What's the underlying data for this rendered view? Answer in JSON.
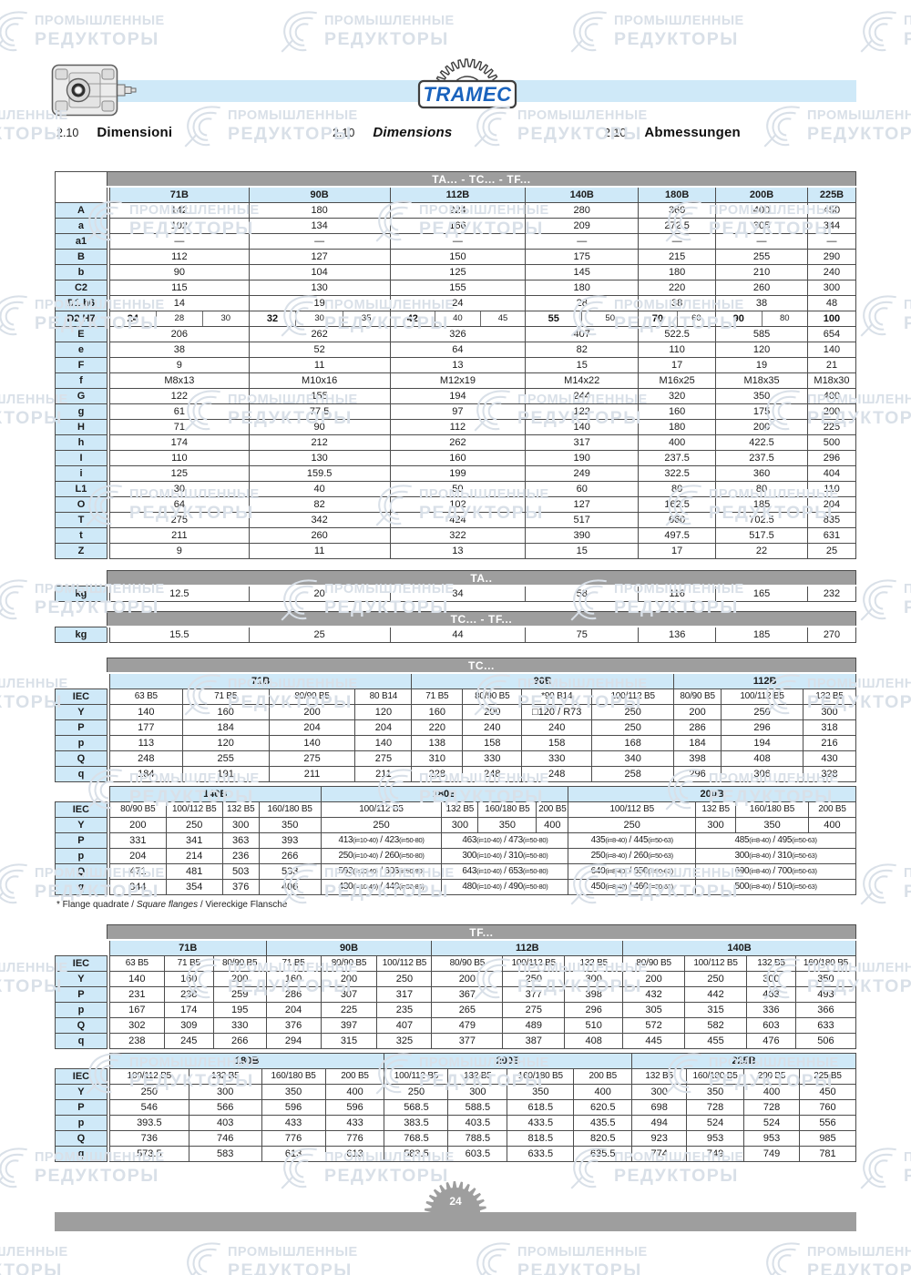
{
  "header": {
    "logo": "TRAMEC",
    "sections": [
      {
        "num": "2.10",
        "title": "Dimensioni"
      },
      {
        "num": "2.10",
        "title": "Dimensions"
      },
      {
        "num": "2.10",
        "title": "Abmessungen"
      }
    ]
  },
  "watermark": {
    "line1": "ПРОМЫШЛЕННЫЕ",
    "line2": "РЕДУКТОРЫ"
  },
  "colors": {
    "band_gray": "#9e9e9e",
    "cell_blue": "#cfe9f8",
    "header_band_blue": "#cfe9f8",
    "logo_blue": "#1a63bd",
    "watermark": "#d9e0e8"
  },
  "main_table": {
    "title": "TA... - TC... - TF...",
    "columns": [
      "71B",
      "90B",
      "112B",
      "140B",
      "180B",
      "200B",
      "225B"
    ],
    "rows": [
      {
        "label": "A",
        "values": [
          "142",
          "180",
          "224",
          "280",
          "360",
          "400",
          "450"
        ]
      },
      {
        "label": "a",
        "values": [
          "102",
          "134",
          "166",
          "209",
          "272.5",
          "305",
          "344"
        ]
      },
      {
        "label": "a1",
        "values": [
          "—",
          "—",
          "—",
          "—",
          "—",
          "—",
          "—"
        ]
      },
      {
        "label": "B",
        "values": [
          "112",
          "127",
          "150",
          "175",
          "215",
          "255",
          "290"
        ]
      },
      {
        "label": "b",
        "values": [
          "90",
          "104",
          "125",
          "145",
          "180",
          "210",
          "240"
        ]
      },
      {
        "label": "C2",
        "values": [
          "115",
          "130",
          "155",
          "180",
          "220",
          "260",
          "300"
        ]
      },
      {
        "label": "D1 h6",
        "values": [
          "14",
          "19",
          "24",
          "28",
          "38",
          "38",
          "48"
        ]
      },
      {
        "label": "D2 H7",
        "values": [
          [
            "24",
            "28",
            "30"
          ],
          [
            "32",
            "30",
            "35"
          ],
          [
            "42",
            "40",
            "45"
          ],
          [
            "55",
            "50"
          ],
          [
            "70",
            "60"
          ],
          [
            "90",
            "80"
          ],
          [
            "100"
          ]
        ]
      },
      {
        "label": "E",
        "values": [
          "206",
          "262",
          "326",
          "407",
          "522.5",
          "585",
          "654"
        ]
      },
      {
        "label": "e",
        "values": [
          "38",
          "52",
          "64",
          "82",
          "110",
          "120",
          "140"
        ]
      },
      {
        "label": "F",
        "values": [
          "9",
          "11",
          "13",
          "15",
          "17",
          "19",
          "21"
        ]
      },
      {
        "label": "f",
        "values": [
          "M8x13",
          "M10x16",
          "M12x19",
          "M14x22",
          "M16x25",
          "M18x35",
          "M18x30"
        ]
      },
      {
        "label": "G",
        "values": [
          "122",
          "155",
          "194",
          "244",
          "320",
          "350",
          "400"
        ]
      },
      {
        "label": "g",
        "values": [
          "61",
          "77.5",
          "97",
          "122",
          "160",
          "175",
          "200"
        ]
      },
      {
        "label": "H",
        "values": [
          "71",
          "90",
          "112",
          "140",
          "180",
          "200",
          "225"
        ]
      },
      {
        "label": "h",
        "values": [
          "174",
          "212",
          "262",
          "317",
          "400",
          "422.5",
          "500"
        ]
      },
      {
        "label": "I",
        "values": [
          "110",
          "130",
          "160",
          "190",
          "237.5",
          "237.5",
          "296"
        ]
      },
      {
        "label": "i",
        "values": [
          "125",
          "159.5",
          "199",
          "249",
          "322.5",
          "360",
          "404"
        ]
      },
      {
        "label": "L1",
        "values": [
          "30",
          "40",
          "50",
          "60",
          "80",
          "80",
          "110"
        ]
      },
      {
        "label": "O",
        "values": [
          "64",
          "82",
          "102",
          "127",
          "162.5",
          "185",
          "204"
        ]
      },
      {
        "label": "T",
        "values": [
          "275",
          "342",
          "424",
          "517",
          "660",
          "702.5",
          "835"
        ]
      },
      {
        "label": "t",
        "values": [
          "211",
          "260",
          "322",
          "390",
          "497.5",
          "517.5",
          "631"
        ]
      },
      {
        "label": "Z",
        "values": [
          "9",
          "11",
          "13",
          "15",
          "17",
          "22",
          "25"
        ]
      }
    ]
  },
  "weight_tables": [
    {
      "title": "TA..",
      "label": "kg",
      "values": [
        "12.5",
        "20",
        "34",
        "58",
        "116",
        "165",
        "232"
      ]
    },
    {
      "title": "TC... - TF...",
      "label": "kg",
      "values": [
        "15.5",
        "25",
        "44",
        "75",
        "136",
        "185",
        "270"
      ]
    }
  ],
  "tc_table": {
    "title": "TC...",
    "iec_label": "IEC",
    "parts": [
      {
        "groups": [
          {
            "label": "71B",
            "span": 4
          },
          {
            "label": "90B",
            "span": 4
          },
          {
            "label": "112B",
            "span": 3
          }
        ],
        "iec": [
          "63 B5",
          "71 B5",
          "80/90 B5",
          "80 B14",
          "71 B5",
          "80/90 B5",
          "*90 B14",
          "100/112 B5",
          "80/90 B5",
          "100/112 B5",
          "132 B5"
        ],
        "rows": [
          {
            "label": "Y",
            "cells": [
              "140",
              "160",
              "200",
              "120",
              "160",
              "200",
              "□120 / R73",
              "250",
              "200",
              "250",
              "300"
            ]
          },
          {
            "label": "P",
            "cells": [
              "177",
              "184",
              "204",
              "204",
              "220",
              "240",
              "240",
              "250",
              "286",
              "296",
              "318"
            ]
          },
          {
            "label": "p",
            "cells": [
              "113",
              "120",
              "140",
              "140",
              "138",
              "158",
              "158",
              "168",
              "184",
              "194",
              "216"
            ]
          },
          {
            "label": "Q",
            "cells": [
              "248",
              "255",
              "275",
              "275",
              "310",
              "330",
              "330",
              "340",
              "398",
              "408",
              "430"
            ]
          },
          {
            "label": "q",
            "cells": [
              "184",
              "191",
              "211",
              "211",
              "228",
              "248",
              "248",
              "258",
              "296",
              "306",
              "328"
            ]
          }
        ]
      },
      {
        "groups": [
          {
            "label": "140B",
            "span": 4
          },
          {
            "label": "180B",
            "span": 4
          },
          {
            "label": "200B",
            "span": 4
          }
        ],
        "iec": [
          "80/90 B5",
          "100/112 B5",
          "132 B5",
          "160/180 B5",
          "100/112 B5",
          "132 B5",
          "160/180 B5",
          "200 B5",
          "100/112 B5",
          "132 B5",
          "160/180 B5",
          "200 B5"
        ],
        "rows": [
          {
            "label": "Y",
            "cells": [
              "200",
              "250",
              "300",
              "350",
              "250",
              "300",
              "350",
              "400",
              "250",
              "300",
              "350",
              "400"
            ]
          },
          {
            "label": "P",
            "cells": [
              "331",
              "341",
              "363",
              "393",
              [
                "413(i=10-40) / 423(i=50-80)",
                1
              ],
              [
                "463(i=10-40) / 473(i=50-80)",
                3
              ],
              [
                "435(i=8-40) / 445(i=50-63)",
                1
              ],
              [
                "485(i=8-40) / 495(i=50-63)",
                3
              ]
            ]
          },
          {
            "label": "p",
            "cells": [
              "204",
              "214",
              "236",
              "266",
              [
                "250(i=10-40) / 260(i=50-80)",
                1
              ],
              [
                "300(i=10-40) / 310(i=50-80)",
                3
              ],
              [
                "250(i=8-40) / 260(i=50-63)",
                1
              ],
              [
                "300(i=8-40) / 310(i=50-63)",
                3
              ]
            ]
          },
          {
            "label": "Q",
            "cells": [
              "471",
              "481",
              "503",
              "533",
              [
                "593(i=10-40) / 603(i=50-80)",
                1
              ],
              [
                "643(i=10-40) / 653(i=50-80)",
                3
              ],
              [
                "640(i=8-40) / 650(i=50-63)",
                1
              ],
              [
                "690(i=8-40) / 700(i=50-63)",
                3
              ]
            ]
          },
          {
            "label": "q",
            "cells": [
              "344",
              "354",
              "376",
              "406",
              [
                "430(i=10-40) / 440(i=50-80)",
                1
              ],
              [
                "480(i=10-40) / 490(i=50-80)",
                3
              ],
              [
                "450(i=8-40) / 460(i=50-63)",
                1
              ],
              [
                "500(i=8-40) / 510(i=50-63)",
                3
              ]
            ]
          }
        ]
      }
    ]
  },
  "footnote": {
    "p1": "* Flange quadrate / ",
    "p2": "Square flanges",
    "p3": " / Viereckige Flansche"
  },
  "tf_table": {
    "title": "TF...",
    "iec_label": "IEC",
    "parts": [
      {
        "groups": [
          {
            "label": "71B",
            "span": 3
          },
          {
            "label": "90B",
            "span": 3
          },
          {
            "label": "112B",
            "span": 3
          },
          {
            "label": "140B",
            "span": 4
          }
        ],
        "iec": [
          "63 B5",
          "71 B5",
          "80/90 B5",
          "71 B5",
          "80/90 B5",
          "100/112 B5",
          "80/90 B5",
          "100/112 B5",
          "132 B5",
          "80/90 B5",
          "100/112 B5",
          "132 B5",
          "160/180 B5"
        ],
        "rows": [
          {
            "label": "Y",
            "cells": [
              "140",
              "160",
              "200",
              "160",
              "200",
              "250",
              "200",
              "250",
              "300",
              "200",
              "250",
              "300",
              "350"
            ]
          },
          {
            "label": "P",
            "cells": [
              "231",
              "238",
              "259",
              "286",
              "307",
              "317",
              "367",
              "377",
              "398",
              "432",
              "442",
              "463",
              "493"
            ]
          },
          {
            "label": "p",
            "cells": [
              "167",
              "174",
              "195",
              "204",
              "225",
              "235",
              "265",
              "275",
              "296",
              "305",
              "315",
              "336",
              "366"
            ]
          },
          {
            "label": "Q",
            "cells": [
              "302",
              "309",
              "330",
              "376",
              "397",
              "407",
              "479",
              "489",
              "510",
              "572",
              "582",
              "603",
              "633"
            ]
          },
          {
            "label": "q",
            "cells": [
              "238",
              "245",
              "266",
              "294",
              "315",
              "325",
              "377",
              "387",
              "408",
              "445",
              "455",
              "476",
              "506"
            ]
          }
        ]
      },
      {
        "groups": [
          {
            "label": "180B",
            "span": 4
          },
          {
            "label": "200B",
            "span": 4
          },
          {
            "label": "225B",
            "span": 4
          }
        ],
        "iec": [
          "100/112 B5",
          "132 B5",
          "160/180 B5",
          "200 B5",
          "100/112 B5",
          "132 B5",
          "160/180 B5",
          "200 B5",
          "132 B5",
          "160/180 B5",
          "200 B5",
          "225 B5"
        ],
        "rows": [
          {
            "label": "Y",
            "cells": [
              "250",
              "300",
              "350",
              "400",
              "250",
              "300",
              "350",
              "400",
              "300",
              "350",
              "400",
              "450"
            ]
          },
          {
            "label": "P",
            "cells": [
              "546",
              "566",
              "596",
              "596",
              "568.5",
              "588.5",
              "618.5",
              "620.5",
              "698",
              "728",
              "728",
              "760"
            ]
          },
          {
            "label": "p",
            "cells": [
              "393.5",
              "403",
              "433",
              "433",
              "383.5",
              "403.5",
              "433.5",
              "435.5",
              "494",
              "524",
              "524",
              "556"
            ]
          },
          {
            "label": "Q",
            "cells": [
              "736",
              "746",
              "776",
              "776",
              "768.5",
              "788.5",
              "818.5",
              "820.5",
              "923",
              "953",
              "953",
              "985"
            ]
          },
          {
            "label": "q",
            "cells": [
              "573.5",
              "583",
              "613",
              "613",
              "583.5",
              "603.5",
              "633.5",
              "635.5",
              "774",
              "749",
              "749",
              "781"
            ]
          }
        ]
      }
    ]
  },
  "footer": {
    "page": "24"
  }
}
